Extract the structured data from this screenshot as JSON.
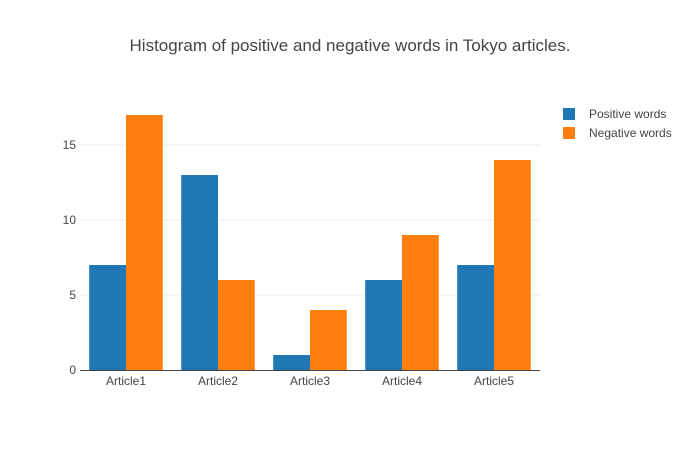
{
  "chart_data": {
    "type": "bar",
    "title": "Histogram of positive and negative words in Tokyo articles.",
    "categories": [
      "Article1",
      "Article2",
      "Article3",
      "Article4",
      "Article5"
    ],
    "series": [
      {
        "name": "Positive words",
        "values": [
          7,
          13,
          1,
          6,
          7
        ],
        "color": "#1f77b4"
      },
      {
        "name": "Negative words",
        "values": [
          17,
          6,
          4,
          9,
          14
        ],
        "color": "#ff7f0e"
      }
    ],
    "xlabel": "",
    "ylabel": "",
    "ylim": [
      0,
      18
    ],
    "yticks": [
      0,
      5,
      10,
      15
    ],
    "grid": true,
    "legend_position": "top-right"
  }
}
